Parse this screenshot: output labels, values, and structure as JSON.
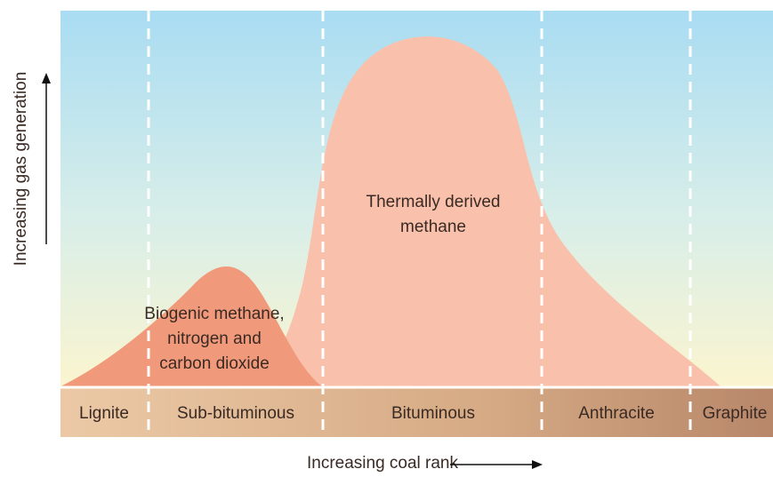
{
  "y_axis_label": "Increasing gas generation",
  "x_axis_label": "Increasing coal rank",
  "regions": [
    {
      "lines": [
        "Thermally derived",
        "methane"
      ]
    },
    {
      "lines": [
        "Biogenic methane,",
        "nitrogen and",
        "carbon dioxide"
      ]
    }
  ],
  "ranks": [
    "Lignite",
    "Sub-bituminous",
    "Bituminous",
    "Anthracite",
    "Graphite"
  ]
}
